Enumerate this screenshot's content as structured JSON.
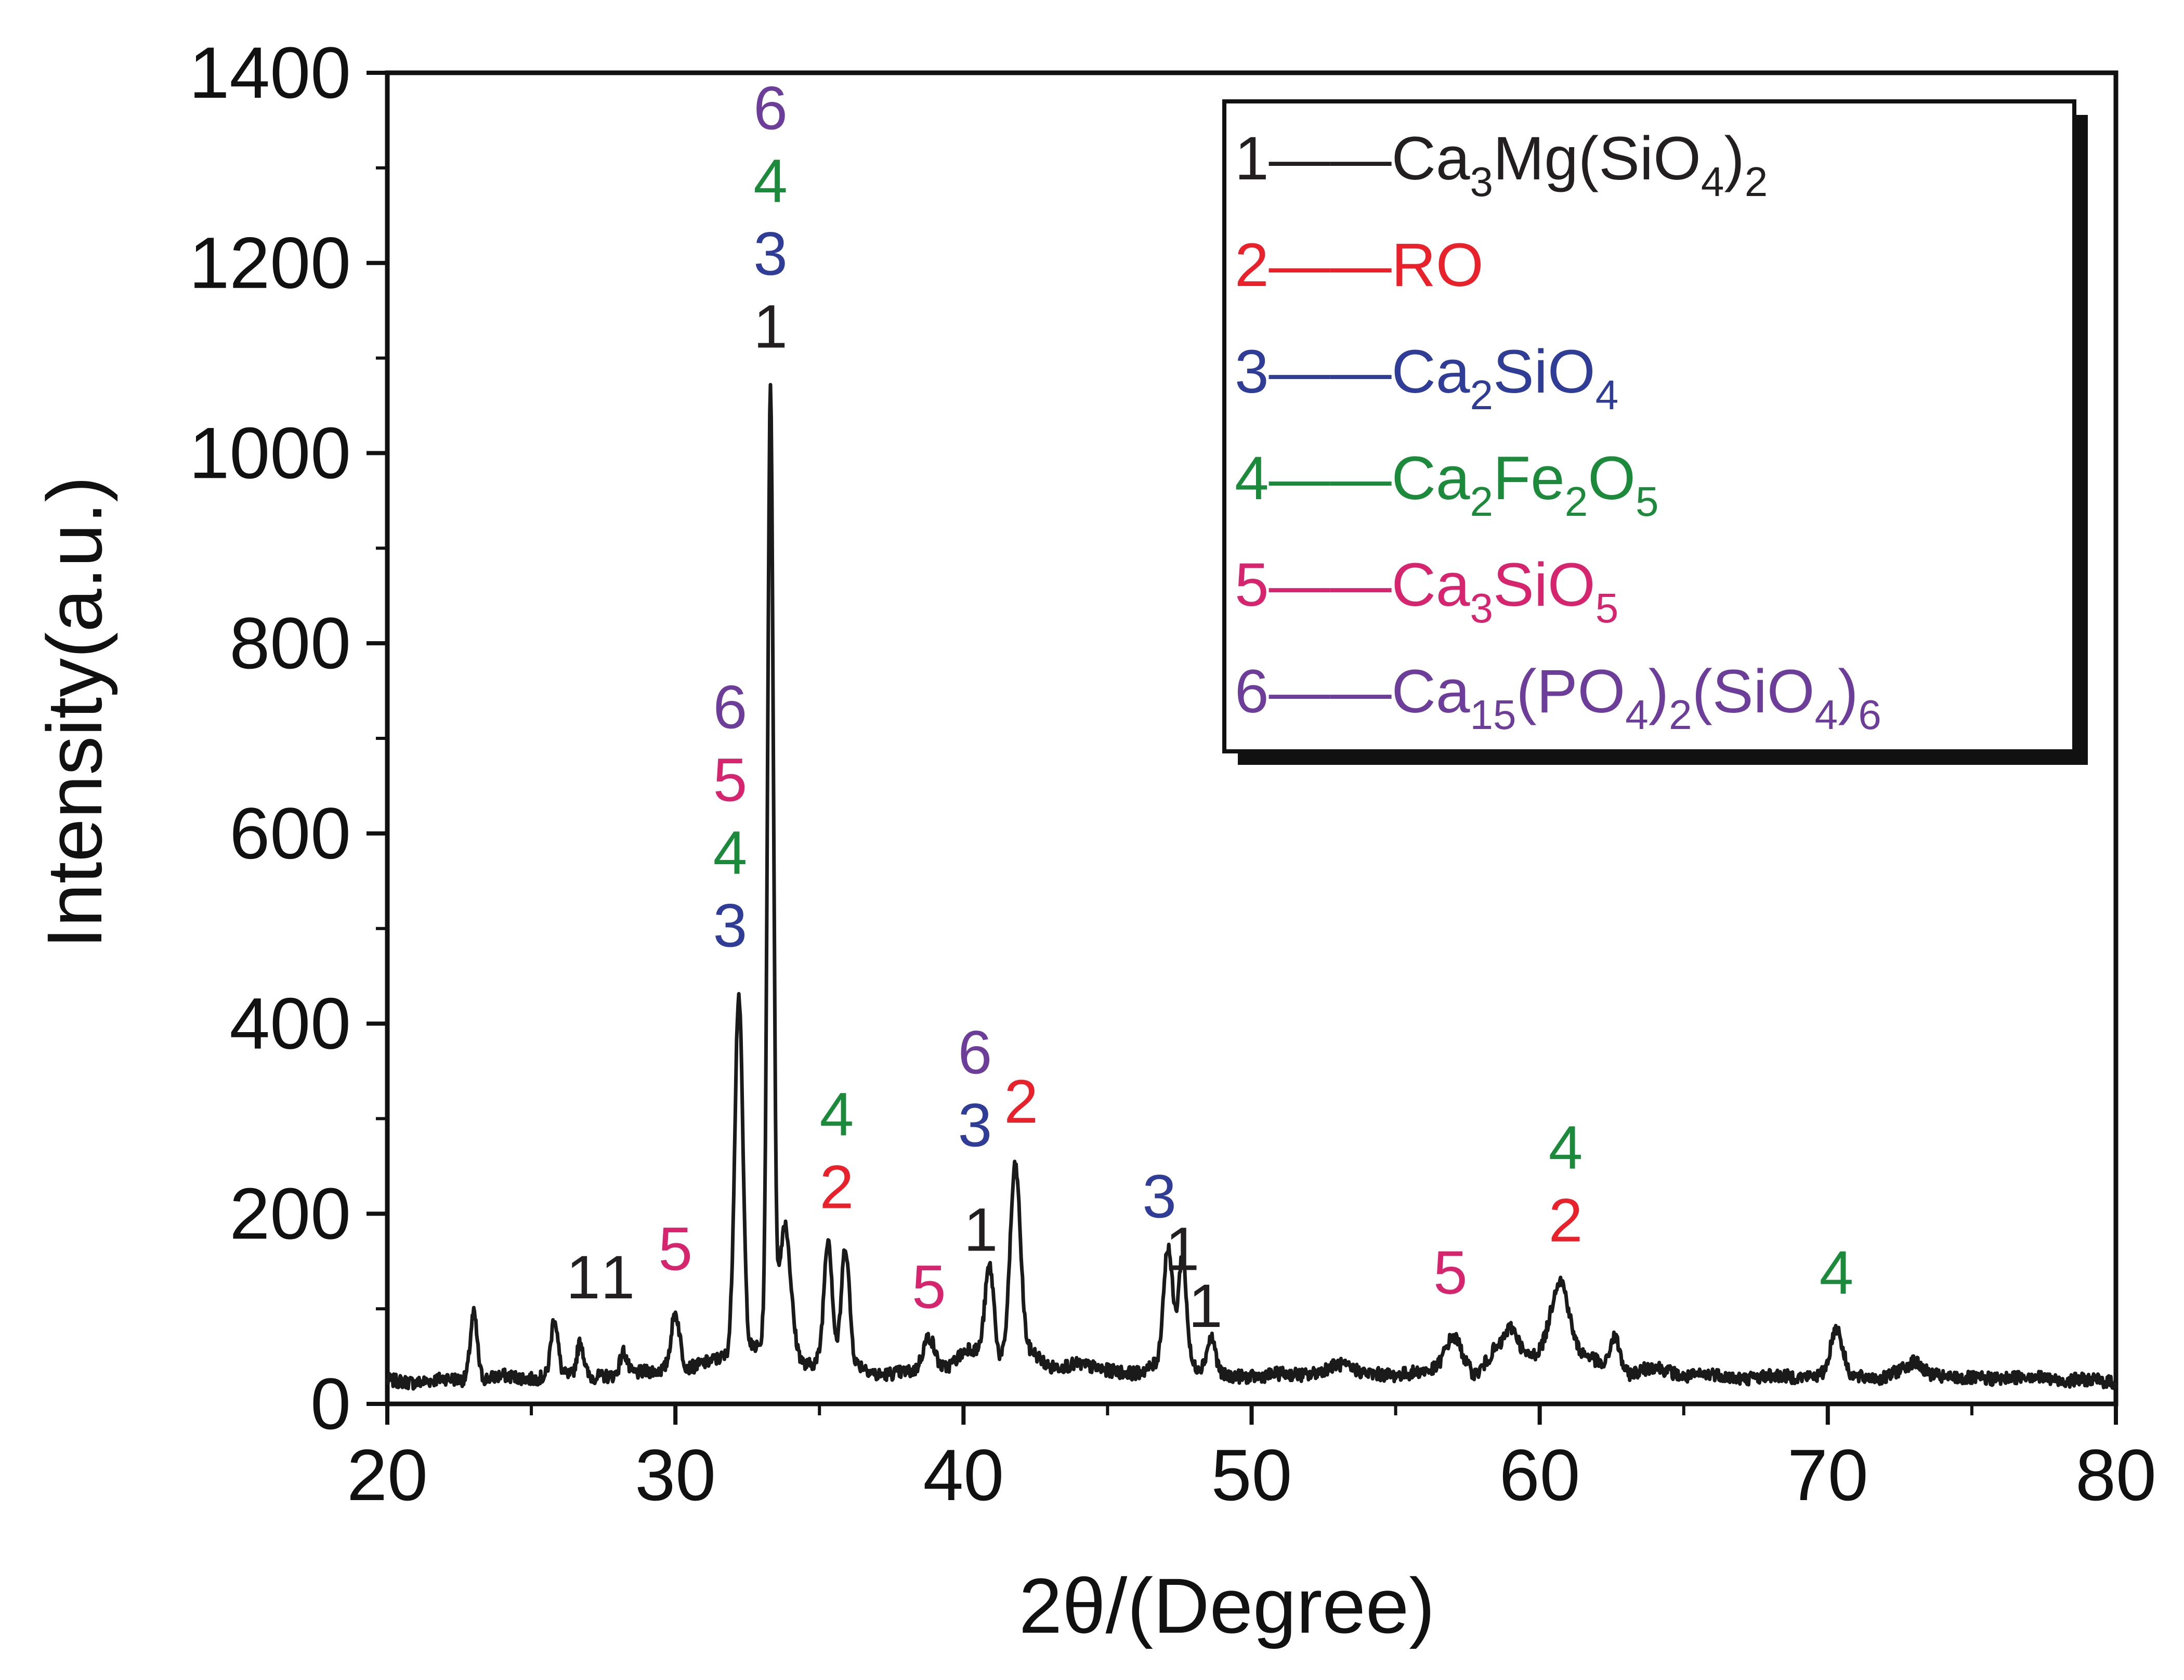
{
  "chart_data": {
    "type": "line",
    "title": "",
    "xlabel": "2θ/(Degree)",
    "ylabel": "Intensity(a.u.)",
    "xlim": [
      20,
      80
    ],
    "ylim": [
      0,
      1400
    ],
    "xticks": [
      20,
      30,
      40,
      50,
      60,
      70,
      80
    ],
    "yticks": [
      0,
      200,
      400,
      600,
      800,
      1000,
      1200,
      1400
    ],
    "legend_position": "top-right",
    "legend": [
      {
        "id": "1",
        "dash": "——",
        "formula": [
          [
            "Ca",
            "n"
          ],
          [
            "3",
            "sub"
          ],
          [
            "Mg(SiO",
            "n"
          ],
          [
            "4",
            "sub"
          ],
          [
            ")",
            "n"
          ],
          [
            "2",
            "sub"
          ]
        ],
        "color": "#231f20"
      },
      {
        "id": "2",
        "dash": "——",
        "formula": [
          [
            "RO",
            "n"
          ]
        ],
        "color": "#e8212b"
      },
      {
        "id": "3",
        "dash": "——",
        "formula": [
          [
            "Ca",
            "n"
          ],
          [
            "2",
            "sub"
          ],
          [
            "SiO",
            "n"
          ],
          [
            "4",
            "sub"
          ]
        ],
        "color": "#2f3d97"
      },
      {
        "id": "4",
        "dash": "——",
        "formula": [
          [
            "Ca",
            "n"
          ],
          [
            "2",
            "sub"
          ],
          [
            "Fe",
            "n"
          ],
          [
            "2",
            "sub"
          ],
          [
            "O",
            "n"
          ],
          [
            "5",
            "sub"
          ]
        ],
        "color": "#1b8a3a"
      },
      {
        "id": "5",
        "dash": "——",
        "formula": [
          [
            "Ca",
            "n"
          ],
          [
            "3",
            "sub"
          ],
          [
            "SiO",
            "n"
          ],
          [
            "5",
            "sub"
          ]
        ],
        "color": "#d6246e"
      },
      {
        "id": "6",
        "dash": "——",
        "formula": [
          [
            "Ca",
            "n"
          ],
          [
            "15",
            "sub"
          ],
          [
            "(PO",
            "n"
          ],
          [
            "4",
            "sub"
          ],
          [
            ")",
            "n"
          ],
          [
            "2",
            "sub"
          ],
          [
            "(SiO",
            "n"
          ],
          [
            "4",
            "sub"
          ],
          [
            ")",
            "n"
          ],
          [
            "6",
            "sub"
          ]
        ],
        "color": "#6d3d9a"
      }
    ],
    "baseline": [
      [
        20,
        25
      ],
      [
        21,
        22
      ],
      [
        22,
        27
      ],
      [
        23,
        24
      ],
      [
        24,
        30
      ],
      [
        25,
        26
      ],
      [
        26,
        31
      ],
      [
        27,
        28
      ],
      [
        28,
        30
      ],
      [
        29,
        34
      ],
      [
        30.5,
        38
      ],
      [
        31.2,
        45
      ],
      [
        33.9,
        70
      ],
      [
        34.5,
        40
      ],
      [
        35,
        45
      ],
      [
        36.5,
        40
      ],
      [
        37,
        30
      ],
      [
        38,
        34
      ],
      [
        39,
        30
      ],
      [
        39.5,
        40
      ],
      [
        40.2,
        60
      ],
      [
        41.2,
        40
      ],
      [
        42.4,
        55
      ],
      [
        43,
        38
      ],
      [
        44,
        42
      ],
      [
        45,
        35
      ],
      [
        46,
        32
      ],
      [
        46.6,
        40
      ],
      [
        48.5,
        38
      ],
      [
        49,
        30
      ],
      [
        50,
        28
      ],
      [
        51,
        32
      ],
      [
        52,
        30
      ],
      [
        53,
        42
      ],
      [
        54,
        32
      ],
      [
        55,
        30
      ],
      [
        56,
        35
      ],
      [
        57.8,
        30
      ],
      [
        58.4,
        55
      ],
      [
        59.5,
        48
      ],
      [
        60.2,
        55
      ],
      [
        61.8,
        50
      ],
      [
        62.3,
        35
      ],
      [
        63,
        30
      ],
      [
        64,
        40
      ],
      [
        65,
        28
      ],
      [
        66,
        32
      ],
      [
        67,
        26
      ],
      [
        68,
        30
      ],
      [
        69,
        28
      ],
      [
        69.8,
        30
      ],
      [
        70.6,
        32
      ],
      [
        71,
        28
      ],
      [
        72,
        27
      ],
      [
        73,
        45
      ],
      [
        73.5,
        32
      ],
      [
        74,
        28
      ],
      [
        75,
        27
      ],
      [
        76,
        26
      ],
      [
        77,
        30
      ],
      [
        78,
        24
      ],
      [
        79,
        26
      ],
      [
        80,
        22
      ]
    ],
    "peaks": [
      {
        "x": 23.0,
        "y": 95,
        "w": 0.12
      },
      {
        "x": 25.8,
        "y": 90,
        "w": 0.12
      },
      {
        "x": 26.7,
        "y": 65,
        "w": 0.12
      },
      {
        "x": 28.2,
        "y": 55,
        "w": 0.12
      },
      {
        "x": 30.0,
        "y": 95,
        "w": 0.15
      },
      {
        "x": 32.2,
        "y": 430,
        "w": 0.14
      },
      {
        "x": 33.3,
        "y": 1070,
        "w": 0.1
      },
      {
        "x": 33.8,
        "y": 190,
        "w": 0.18
      },
      {
        "x": 35.3,
        "y": 175,
        "w": 0.14
      },
      {
        "x": 35.9,
        "y": 165,
        "w": 0.14
      },
      {
        "x": 38.8,
        "y": 70,
        "w": 0.22
      },
      {
        "x": 40.9,
        "y": 145,
        "w": 0.16
      },
      {
        "x": 41.8,
        "y": 250,
        "w": 0.18
      },
      {
        "x": 47.1,
        "y": 165,
        "w": 0.16
      },
      {
        "x": 47.6,
        "y": 155,
        "w": 0.14
      },
      {
        "x": 48.6,
        "y": 70,
        "w": 0.14
      },
      {
        "x": 57.0,
        "y": 70,
        "w": 0.3
      },
      {
        "x": 59.0,
        "y": 80,
        "w": 0.25
      },
      {
        "x": 60.7,
        "y": 130,
        "w": 0.3
      },
      {
        "x": 62.6,
        "y": 70,
        "w": 0.18
      },
      {
        "x": 70.3,
        "y": 80,
        "w": 0.2
      }
    ],
    "annotations": [
      {
        "x": 26.8,
        "y": 100,
        "labels": [
          "1"
        ]
      },
      {
        "x": 28.0,
        "y": 100,
        "labels": [
          "1"
        ]
      },
      {
        "x": 30.0,
        "y": 130,
        "labels": [
          "5"
        ]
      },
      {
        "x": 31.9,
        "y": 470,
        "labels": [
          "3",
          "4",
          "5",
          "6"
        ]
      },
      {
        "x": 33.3,
        "y": 1100,
        "labels": [
          "1",
          "3",
          "4",
          "6"
        ]
      },
      {
        "x": 33.3,
        "y": 0,
        "labels": []
      },
      {
        "x": 35.6,
        "y": 195,
        "labels": [
          "2",
          "4"
        ]
      },
      {
        "x": 38.8,
        "y": 90,
        "labels": [
          "5"
        ]
      },
      {
        "x": 40.6,
        "y": 150,
        "labels": [
          "1"
        ]
      },
      {
        "x": 40.4,
        "y": 260,
        "labels": [
          "3",
          "6"
        ]
      },
      {
        "x": 42.0,
        "y": 285,
        "labels": [
          "2"
        ]
      },
      {
        "x": 46.8,
        "y": 185,
        "labels": [
          "3"
        ]
      },
      {
        "x": 47.6,
        "y": 130,
        "labels": [
          "1"
        ]
      },
      {
        "x": 48.4,
        "y": 70,
        "labels": [
          "1"
        ]
      },
      {
        "x": 56.9,
        "y": 105,
        "labels": [
          "5"
        ]
      },
      {
        "x": 60.9,
        "y": 160,
        "labels": [
          "2",
          "4"
        ]
      },
      {
        "x": 70.3,
        "y": 105,
        "labels": [
          "4"
        ]
      }
    ]
  }
}
